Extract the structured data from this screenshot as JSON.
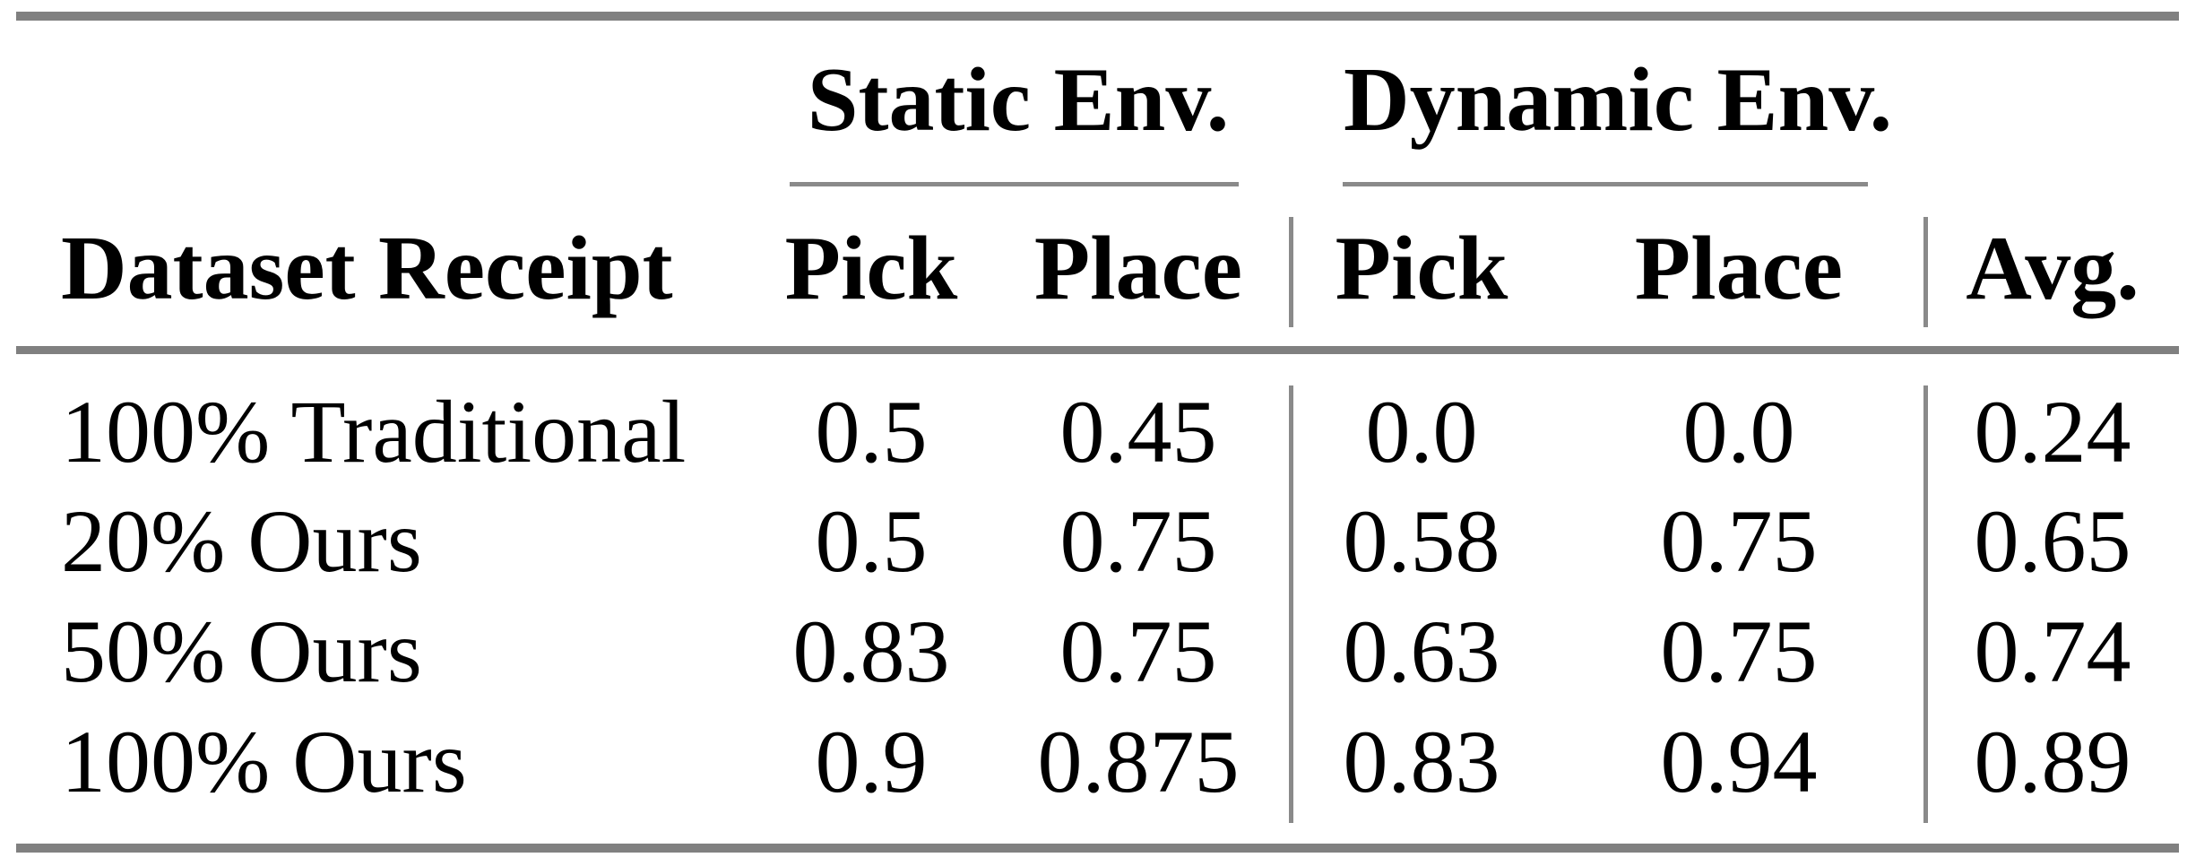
{
  "table": {
    "row_header": "Dataset Receipt",
    "group_headers": {
      "static": "Static Env.",
      "dynamic": "Dynamic Env."
    },
    "column_headers": {
      "static_pick": "Pick",
      "static_place": "Place",
      "dynamic_pick": "Pick",
      "dynamic_place": "Place",
      "avg": "Avg."
    },
    "rows": [
      {
        "label": "100% Traditional",
        "static_pick": "0.5",
        "static_place": "0.45",
        "dynamic_pick": "0.0",
        "dynamic_place": "0.0",
        "avg": "0.24"
      },
      {
        "label": "20% Ours",
        "static_pick": "0.5",
        "static_place": "0.75",
        "dynamic_pick": "0.58",
        "dynamic_place": "0.75",
        "avg": "0.65"
      },
      {
        "label": "50% Ours",
        "static_pick": "0.83",
        "static_place": "0.75",
        "dynamic_pick": "0.63",
        "dynamic_place": "0.75",
        "avg": "0.74"
      },
      {
        "label": "100% Ours",
        "static_pick": "0.9",
        "static_place": "0.875",
        "dynamic_pick": "0.83",
        "dynamic_place": "0.94",
        "avg": "0.89"
      }
    ]
  },
  "colors": {
    "rule_thick": "#808080",
    "rule_thin": "#8a8a8a",
    "text": "#000000",
    "background": "#ffffff"
  }
}
